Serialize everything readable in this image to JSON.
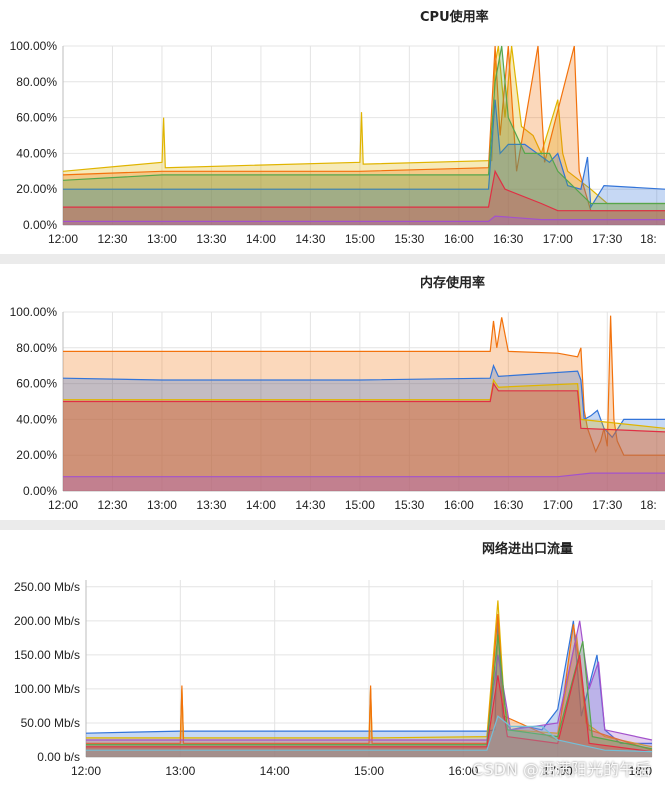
{
  "chart_data": [
    {
      "type": "area",
      "title": "CPU使用率",
      "y_ticks": [
        "100.00%",
        "80.00%",
        "60.00%",
        "40.00%",
        "20.00%",
        "0.00%"
      ],
      "x_ticks": [
        "12:00",
        "12:30",
        "13:00",
        "13:30",
        "14:00",
        "14:30",
        "15:00",
        "15:30",
        "16:00",
        "16:30",
        "17:00",
        "17:30",
        "18:"
      ],
      "ylim": [
        0,
        100
      ],
      "xlim_minutes": [
        0,
        365
      ],
      "grid": true,
      "legend": "none",
      "series": [
        {
          "color": "#e0b400",
          "points": [
            [
              0,
              30
            ],
            [
              60,
              35
            ],
            [
              61,
              60
            ],
            [
              62,
              32
            ],
            [
              180,
              35
            ],
            [
              181,
              63
            ],
            [
              182,
              34
            ],
            [
              260,
              36
            ],
            [
              262,
              90
            ],
            [
              264,
              100
            ],
            [
              268,
              60
            ],
            [
              272,
              100
            ],
            [
              278,
              55
            ],
            [
              285,
              50
            ],
            [
              290,
              40
            ],
            [
              300,
              70
            ],
            [
              303,
              40
            ],
            [
              306,
              30
            ],
            [
              320,
              20
            ],
            [
              330,
              12
            ],
            [
              365,
              12
            ]
          ]
        },
        {
          "color": "#f2720c",
          "points": [
            [
              0,
              28
            ],
            [
              60,
              30
            ],
            [
              180,
              30
            ],
            [
              258,
              32
            ],
            [
              262,
              100
            ],
            [
              265,
              50
            ],
            [
              270,
              100
            ],
            [
              275,
              30
            ],
            [
              288,
              100
            ],
            [
              292,
              35
            ],
            [
              310,
              100
            ],
            [
              313,
              30
            ],
            [
              320,
              8
            ],
            [
              330,
              8
            ],
            [
              365,
              8
            ]
          ]
        },
        {
          "color": "#3274d9",
          "points": [
            [
              0,
              20
            ],
            [
              60,
              20
            ],
            [
              180,
              20
            ],
            [
              258,
              20
            ],
            [
              262,
              70
            ],
            [
              265,
              40
            ],
            [
              270,
              45
            ],
            [
              280,
              45
            ],
            [
              295,
              35
            ],
            [
              300,
              40
            ],
            [
              306,
              22
            ],
            [
              314,
              20
            ],
            [
              318,
              38
            ],
            [
              320,
              10
            ],
            [
              328,
              22
            ],
            [
              365,
              20
            ]
          ]
        },
        {
          "color": "#56a64b",
          "points": [
            [
              0,
              25
            ],
            [
              60,
              28
            ],
            [
              180,
              28
            ],
            [
              258,
              28
            ],
            [
              262,
              80
            ],
            [
              266,
              100
            ],
            [
              270,
              60
            ],
            [
              280,
              40
            ],
            [
              295,
              40
            ],
            [
              300,
              30
            ],
            [
              320,
              12
            ],
            [
              365,
              12
            ]
          ]
        },
        {
          "color": "#e02f44",
          "points": [
            [
              0,
              10
            ],
            [
              60,
              10
            ],
            [
              180,
              10
            ],
            [
              258,
              10
            ],
            [
              262,
              30
            ],
            [
              268,
              20
            ],
            [
              290,
              12
            ],
            [
              300,
              8
            ],
            [
              320,
              8
            ],
            [
              365,
              8
            ]
          ]
        },
        {
          "color": "#a352cc",
          "points": [
            [
              0,
              2
            ],
            [
              60,
              2
            ],
            [
              180,
              2
            ],
            [
              258,
              2
            ],
            [
              262,
              5
            ],
            [
              290,
              3
            ],
            [
              365,
              3
            ]
          ]
        }
      ]
    },
    {
      "type": "area",
      "title": "内存使用率",
      "y_ticks": [
        "100.00%",
        "80.00%",
        "60.00%",
        "40.00%",
        "20.00%",
        "0.00%"
      ],
      "x_ticks": [
        "12:00",
        "12:30",
        "13:00",
        "13:30",
        "14:00",
        "14:30",
        "15:00",
        "15:30",
        "16:00",
        "16:30",
        "17:00",
        "17:30",
        "18:"
      ],
      "ylim": [
        0,
        100
      ],
      "xlim_minutes": [
        0,
        365
      ],
      "grid": true,
      "legend": "none",
      "series": [
        {
          "color": "#f2720c",
          "points": [
            [
              0,
              78
            ],
            [
              60,
              78
            ],
            [
              120,
              78
            ],
            [
              180,
              78
            ],
            [
              259,
              78
            ],
            [
              261,
              95
            ],
            [
              263,
              80
            ],
            [
              266,
              97
            ],
            [
              270,
              78
            ],
            [
              300,
              77
            ],
            [
              312,
              75
            ],
            [
              314,
              80
            ],
            [
              316,
              45
            ],
            [
              318,
              35
            ],
            [
              323,
              22
            ],
            [
              326,
              28
            ],
            [
              328,
              35
            ],
            [
              329,
              30
            ],
            [
              330,
              25
            ],
            [
              332,
              98
            ],
            [
              334,
              40
            ],
            [
              336,
              28
            ],
            [
              340,
              20
            ],
            [
              350,
              20
            ],
            [
              365,
              20
            ]
          ]
        },
        {
          "color": "#3274d9",
          "points": [
            [
              0,
              63
            ],
            [
              60,
              62
            ],
            [
              120,
              62
            ],
            [
              180,
              62
            ],
            [
              259,
              63
            ],
            [
              261,
              70
            ],
            [
              264,
              64
            ],
            [
              312,
              67
            ],
            [
              314,
              62
            ],
            [
              316,
              40
            ],
            [
              320,
              42
            ],
            [
              324,
              45
            ],
            [
              328,
              35
            ],
            [
              333,
              30
            ],
            [
              340,
              40
            ],
            [
              365,
              40
            ]
          ]
        },
        {
          "color": "#e0b400",
          "points": [
            [
              0,
              51
            ],
            [
              60,
              51
            ],
            [
              120,
              51
            ],
            [
              180,
              51
            ],
            [
              259,
              51
            ],
            [
              261,
              62
            ],
            [
              264,
              58
            ],
            [
              312,
              60
            ],
            [
              314,
              40
            ],
            [
              365,
              35
            ]
          ]
        },
        {
          "color": "#e02f44",
          "points": [
            [
              0,
              50
            ],
            [
              60,
              50
            ],
            [
              120,
              50
            ],
            [
              180,
              50
            ],
            [
              259,
              50
            ],
            [
              261,
              60
            ],
            [
              264,
              56
            ],
            [
              312,
              56
            ],
            [
              314,
              35
            ],
            [
              365,
              33
            ]
          ]
        },
        {
          "color": "#a352cc",
          "points": [
            [
              0,
              8
            ],
            [
              60,
              8
            ],
            [
              120,
              8
            ],
            [
              180,
              8
            ],
            [
              259,
              8
            ],
            [
              300,
              8
            ],
            [
              320,
              10
            ],
            [
              365,
              10
            ]
          ]
        }
      ]
    },
    {
      "type": "area",
      "title": "网络进出口流量",
      "y_ticks": [
        "250.00 Mb/s",
        "200.00 Mb/s",
        "150.00 Mb/s",
        "100.00 Mb/s",
        "50.00 Mb/s",
        "0.00 b/s"
      ],
      "x_ticks": [
        "12:00",
        "13:00",
        "14:00",
        "15:00",
        "16:00",
        "17:00",
        "18:0"
      ],
      "ylim": [
        0,
        260
      ],
      "xlim_minutes": [
        0,
        360
      ],
      "grid": true,
      "legend": "none",
      "series": [
        {
          "color": "#3274d9",
          "points": [
            [
              0,
              35
            ],
            [
              60,
              38
            ],
            [
              120,
              38
            ],
            [
              180,
              38
            ],
            [
              255,
              38
            ],
            [
              260,
              40
            ],
            [
              262,
              200
            ],
            [
              265,
              60
            ],
            [
              270,
              40
            ],
            [
              280,
              45
            ],
            [
              290,
              40
            ],
            [
              300,
              70
            ],
            [
              310,
              200
            ],
            [
              315,
              60
            ],
            [
              325,
              150
            ],
            [
              330,
              40
            ],
            [
              340,
              20
            ],
            [
              360,
              20
            ]
          ]
        },
        {
          "color": "#e0b400",
          "points": [
            [
              0,
              28
            ],
            [
              60,
              28
            ],
            [
              61,
              100
            ],
            [
              62,
              28
            ],
            [
              180,
              28
            ],
            [
              181,
              100
            ],
            [
              182,
              28
            ],
            [
              255,
              30
            ],
            [
              262,
              230
            ],
            [
              266,
              80
            ],
            [
              270,
              40
            ],
            [
              300,
              35
            ],
            [
              312,
              180
            ],
            [
              318,
              50
            ],
            [
              330,
              30
            ],
            [
              360,
              15
            ]
          ]
        },
        {
          "color": "#f2720c",
          "points": [
            [
              0,
              20
            ],
            [
              60,
              20
            ],
            [
              61,
              105
            ],
            [
              62,
              20
            ],
            [
              180,
              20
            ],
            [
              181,
              105
            ],
            [
              182,
              20
            ],
            [
              255,
              20
            ],
            [
              262,
              210
            ],
            [
              266,
              60
            ],
            [
              300,
              25
            ],
            [
              310,
              195
            ],
            [
              320,
              40
            ],
            [
              360,
              10
            ]
          ]
        },
        {
          "color": "#a352cc",
          "points": [
            [
              0,
              25
            ],
            [
              60,
              25
            ],
            [
              180,
              25
            ],
            [
              255,
              25
            ],
            [
              262,
              150
            ],
            [
              270,
              40
            ],
            [
              300,
              50
            ],
            [
              314,
              200
            ],
            [
              320,
              100
            ],
            [
              326,
              140
            ],
            [
              330,
              40
            ],
            [
              360,
              25
            ]
          ]
        },
        {
          "color": "#56a64b",
          "points": [
            [
              0,
              18
            ],
            [
              60,
              18
            ],
            [
              180,
              18
            ],
            [
              255,
              18
            ],
            [
              262,
              180
            ],
            [
              268,
              40
            ],
            [
              300,
              30
            ],
            [
              316,
              170
            ],
            [
              322,
              30
            ],
            [
              360,
              12
            ]
          ]
        },
        {
          "color": "#e02f44",
          "points": [
            [
              0,
              15
            ],
            [
              60,
              15
            ],
            [
              180,
              15
            ],
            [
              255,
              15
            ],
            [
              262,
              120
            ],
            [
              268,
              30
            ],
            [
              300,
              20
            ],
            [
              314,
              150
            ],
            [
              320,
              20
            ],
            [
              360,
              8
            ]
          ]
        },
        {
          "color": "#73bfd8",
          "points": [
            [
              0,
              10
            ],
            [
              180,
              10
            ],
            [
              255,
              10
            ],
            [
              262,
              60
            ],
            [
              270,
              45
            ],
            [
              290,
              45
            ],
            [
              300,
              25
            ],
            [
              330,
              10
            ],
            [
              360,
              8
            ]
          ]
        }
      ]
    }
  ],
  "watermark": "CSDN @洒满阳光的午后"
}
